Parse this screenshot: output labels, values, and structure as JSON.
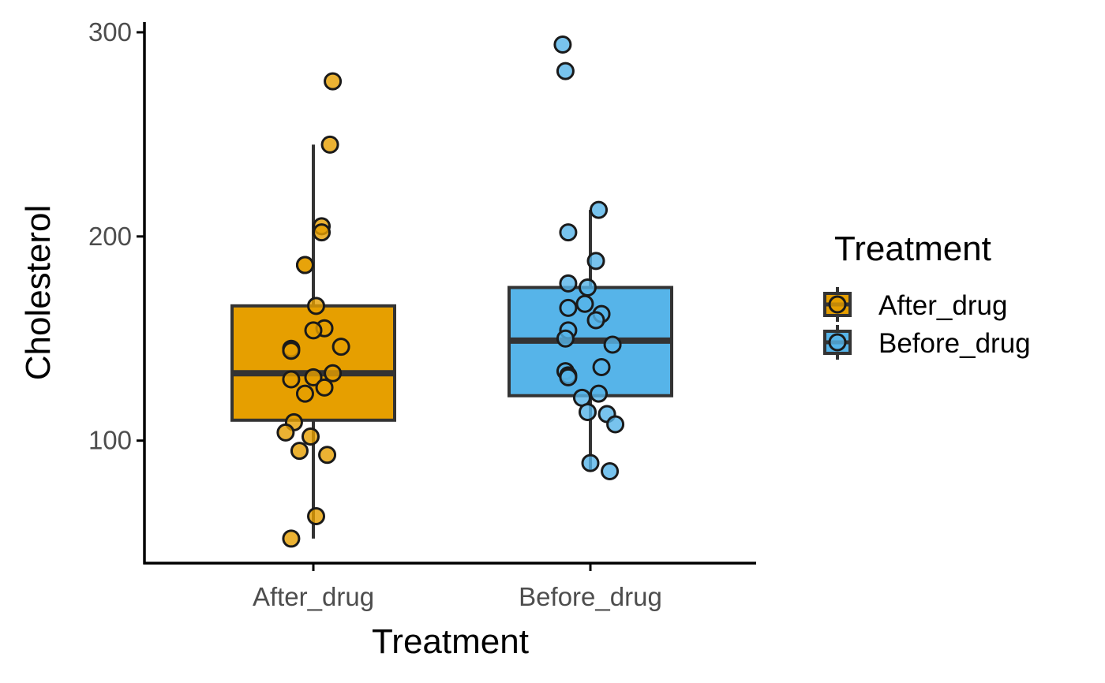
{
  "chart_data": {
    "type": "boxplot",
    "xlabel": "Treatment",
    "ylabel": "Cholesterol",
    "ylim": [
      40,
      305
    ],
    "y_ticks": [
      100,
      200,
      300
    ],
    "categories": [
      "After_drug",
      "Before_drug"
    ],
    "legend": {
      "title": "Treatment",
      "position": "right",
      "entries": [
        "After_drug",
        "Before_drug"
      ]
    },
    "series": [
      {
        "name": "After_drug",
        "color": "#E69F00",
        "box": {
          "whisker_low": 52,
          "q1": 110,
          "median": 133,
          "q3": 166,
          "whisker_high": 245
        },
        "points": [
          {
            "y": 276,
            "jitter": 0.07
          },
          {
            "y": 245,
            "jitter": 0.06
          },
          {
            "y": 205,
            "jitter": 0.03
          },
          {
            "y": 202,
            "jitter": 0.03
          },
          {
            "y": 186,
            "jitter": -0.03
          },
          {
            "y": 186,
            "jitter": -0.03
          },
          {
            "y": 166,
            "jitter": 0.01
          },
          {
            "y": 155,
            "jitter": 0.04
          },
          {
            "y": 154,
            "jitter": 0.0
          },
          {
            "y": 146,
            "jitter": 0.1
          },
          {
            "y": 145,
            "jitter": -0.08
          },
          {
            "y": 144,
            "jitter": -0.08
          },
          {
            "y": 133,
            "jitter": 0.07
          },
          {
            "y": 131,
            "jitter": 0.0
          },
          {
            "y": 130,
            "jitter": -0.08
          },
          {
            "y": 126,
            "jitter": 0.04
          },
          {
            "y": 123,
            "jitter": -0.03
          },
          {
            "y": 109,
            "jitter": -0.07
          },
          {
            "y": 104,
            "jitter": -0.1
          },
          {
            "y": 102,
            "jitter": -0.01
          },
          {
            "y": 95,
            "jitter": -0.05
          },
          {
            "y": 93,
            "jitter": 0.05
          },
          {
            "y": 63,
            "jitter": 0.01
          },
          {
            "y": 52,
            "jitter": -0.08
          }
        ]
      },
      {
        "name": "Before_drug",
        "color": "#56B4E9",
        "box": {
          "whisker_low": 85,
          "q1": 122,
          "median": 149,
          "q3": 175,
          "whisker_high": 213
        },
        "points": [
          {
            "y": 294,
            "jitter": -0.1
          },
          {
            "y": 281,
            "jitter": -0.09
          },
          {
            "y": 213,
            "jitter": 0.03
          },
          {
            "y": 202,
            "jitter": -0.08
          },
          {
            "y": 188,
            "jitter": 0.02
          },
          {
            "y": 177,
            "jitter": -0.08
          },
          {
            "y": 175,
            "jitter": -0.01
          },
          {
            "y": 167,
            "jitter": -0.02
          },
          {
            "y": 165,
            "jitter": -0.08
          },
          {
            "y": 162,
            "jitter": 0.04
          },
          {
            "y": 159,
            "jitter": 0.02
          },
          {
            "y": 154,
            "jitter": -0.08
          },
          {
            "y": 150,
            "jitter": -0.09
          },
          {
            "y": 147,
            "jitter": 0.08
          },
          {
            "y": 136,
            "jitter": 0.04
          },
          {
            "y": 134,
            "jitter": -0.09
          },
          {
            "y": 132,
            "jitter": -0.08
          },
          {
            "y": 131,
            "jitter": -0.08
          },
          {
            "y": 123,
            "jitter": 0.03
          },
          {
            "y": 121,
            "jitter": -0.03
          },
          {
            "y": 114,
            "jitter": -0.01
          },
          {
            "y": 113,
            "jitter": 0.06
          },
          {
            "y": 108,
            "jitter": 0.09
          },
          {
            "y": 89,
            "jitter": 0.0
          },
          {
            "y": 85,
            "jitter": 0.07
          }
        ]
      }
    ]
  }
}
